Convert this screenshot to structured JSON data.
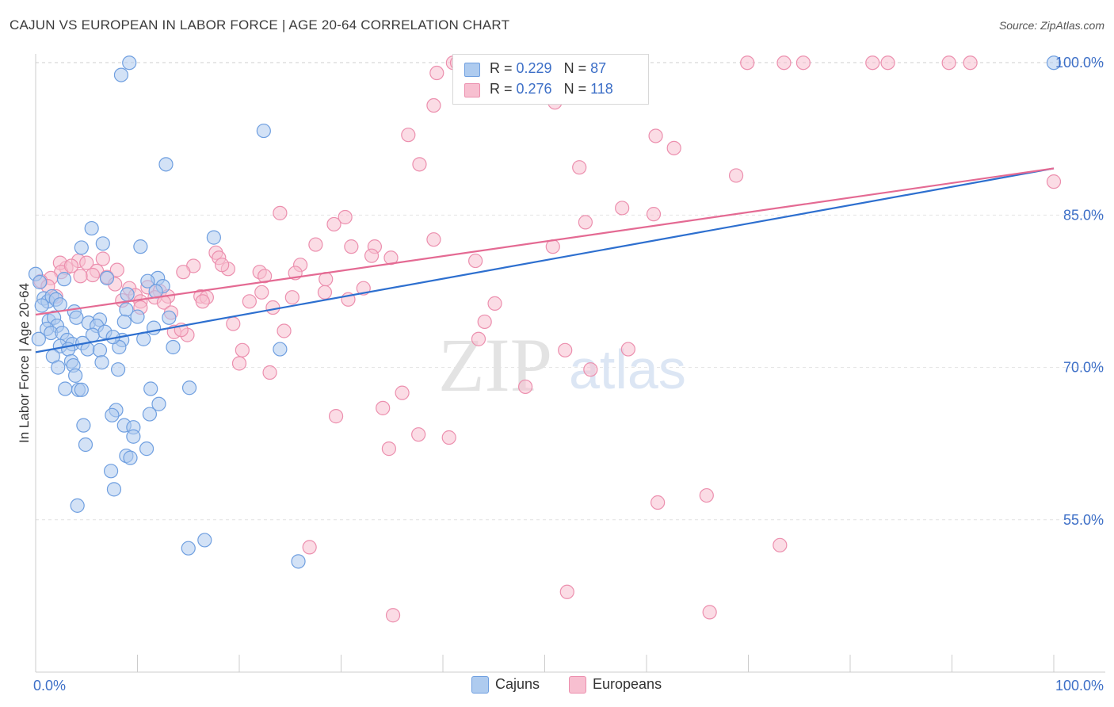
{
  "title": "CAJUN VS EUROPEAN IN LABOR FORCE | AGE 20-64 CORRELATION CHART",
  "source": "Source: ZipAtlas.com",
  "watermark": {
    "zip": "ZIP",
    "atlas": "atlas"
  },
  "legend": {
    "cajuns": {
      "r_label": "R = ",
      "r_value": "0.229",
      "n_label": "N = ",
      "n_value": "87"
    },
    "europeans": {
      "r_label": "R = ",
      "r_value": "0.276",
      "n_label": "N = ",
      "n_value": "118"
    }
  },
  "colors": {
    "cajun_fill": "#aecbef",
    "cajun_stroke": "#6f9fe0",
    "cajun_line": "#2d6fcf",
    "european_fill": "#f7bfd0",
    "european_stroke": "#ec8fae",
    "european_line": "#e46a93",
    "axis_label": "#3d6fc7",
    "grid": "#e2e2e2"
  },
  "chart_data": {
    "type": "scatter",
    "title": "CAJUN VS EUROPEAN IN LABOR FORCE | AGE 20-64 CORRELATION CHART",
    "xlabel": "",
    "ylabel": "In Labor Force | Age 20-64",
    "xlim": [
      0,
      100
    ],
    "ylim": [
      40,
      101.5
    ],
    "x_tick_labels": [
      "0.0%",
      "100.0%"
    ],
    "y_ticks": [
      55,
      70,
      85,
      100
    ],
    "y_tick_labels": [
      "55.0%",
      "70.0%",
      "85.0%",
      "100.0%"
    ],
    "grid": true,
    "legend_position": "bottom",
    "series": [
      {
        "name": "Cajuns",
        "r": 0.229,
        "n": 87,
        "trend": {
          "x": [
            0,
            100
          ],
          "y": [
            71.5,
            89.6
          ]
        },
        "points": [
          {
            "x": 9.2,
            "y": 100.0
          },
          {
            "x": 8.4,
            "y": 98.8
          },
          {
            "x": 100.0,
            "y": 100.0
          },
          {
            "x": 22.4,
            "y": 93.3
          },
          {
            "x": 12.8,
            "y": 90.0
          },
          {
            "x": 5.5,
            "y": 83.7
          },
          {
            "x": 17.5,
            "y": 82.8
          },
          {
            "x": 6.6,
            "y": 82.2
          },
          {
            "x": 10.3,
            "y": 81.9
          },
          {
            "x": 4.5,
            "y": 81.8
          },
          {
            "x": 0.0,
            "y": 79.2
          },
          {
            "x": 2.8,
            "y": 78.7
          },
          {
            "x": 7.0,
            "y": 78.8
          },
          {
            "x": 12.0,
            "y": 78.8
          },
          {
            "x": 11.0,
            "y": 78.5
          },
          {
            "x": 12.5,
            "y": 78.0
          },
          {
            "x": 0.4,
            "y": 78.4
          },
          {
            "x": 0.8,
            "y": 76.8
          },
          {
            "x": 1.2,
            "y": 76.5
          },
          {
            "x": 1.6,
            "y": 77.0
          },
          {
            "x": 2.0,
            "y": 76.7
          },
          {
            "x": 2.4,
            "y": 76.2
          },
          {
            "x": 0.6,
            "y": 76.1
          },
          {
            "x": 3.8,
            "y": 75.5
          },
          {
            "x": 8.9,
            "y": 75.7
          },
          {
            "x": 13.1,
            "y": 74.9
          },
          {
            "x": 1.3,
            "y": 74.6
          },
          {
            "x": 1.8,
            "y": 74.9
          },
          {
            "x": 4.0,
            "y": 74.9
          },
          {
            "x": 5.2,
            "y": 74.4
          },
          {
            "x": 6.3,
            "y": 74.7
          },
          {
            "x": 8.7,
            "y": 74.5
          },
          {
            "x": 2.1,
            "y": 74.1
          },
          {
            "x": 1.1,
            "y": 73.8
          },
          {
            "x": 6.0,
            "y": 74.1
          },
          {
            "x": 11.6,
            "y": 73.9
          },
          {
            "x": 1.5,
            "y": 73.4
          },
          {
            "x": 2.6,
            "y": 73.4
          },
          {
            "x": 5.6,
            "y": 73.2
          },
          {
            "x": 6.8,
            "y": 73.5
          },
          {
            "x": 0.3,
            "y": 72.8
          },
          {
            "x": 3.1,
            "y": 72.7
          },
          {
            "x": 8.5,
            "y": 72.7
          },
          {
            "x": 10.6,
            "y": 72.8
          },
          {
            "x": 2.4,
            "y": 72.1
          },
          {
            "x": 3.6,
            "y": 72.3
          },
          {
            "x": 4.6,
            "y": 72.4
          },
          {
            "x": 8.2,
            "y": 72.0
          },
          {
            "x": 3.2,
            "y": 71.8
          },
          {
            "x": 5.1,
            "y": 71.8
          },
          {
            "x": 6.3,
            "y": 71.7
          },
          {
            "x": 24.0,
            "y": 71.8
          },
          {
            "x": 1.7,
            "y": 71.1
          },
          {
            "x": 3.5,
            "y": 70.6
          },
          {
            "x": 3.7,
            "y": 70.2
          },
          {
            "x": 8.1,
            "y": 69.8
          },
          {
            "x": 3.9,
            "y": 69.2
          },
          {
            "x": 2.9,
            "y": 67.9
          },
          {
            "x": 4.2,
            "y": 67.8
          },
          {
            "x": 4.5,
            "y": 67.8
          },
          {
            "x": 11.3,
            "y": 67.9
          },
          {
            "x": 15.1,
            "y": 68.0
          },
          {
            "x": 12.1,
            "y": 66.4
          },
          {
            "x": 7.9,
            "y": 65.8
          },
          {
            "x": 7.5,
            "y": 65.3
          },
          {
            "x": 11.2,
            "y": 65.4
          },
          {
            "x": 4.7,
            "y": 64.3
          },
          {
            "x": 8.7,
            "y": 64.3
          },
          {
            "x": 9.6,
            "y": 64.1
          },
          {
            "x": 9.6,
            "y": 63.2
          },
          {
            "x": 4.9,
            "y": 62.4
          },
          {
            "x": 10.9,
            "y": 62.0
          },
          {
            "x": 8.9,
            "y": 61.3
          },
          {
            "x": 9.3,
            "y": 61.1
          },
          {
            "x": 7.4,
            "y": 59.8
          },
          {
            "x": 7.7,
            "y": 58.0
          },
          {
            "x": 4.1,
            "y": 56.4
          },
          {
            "x": 16.6,
            "y": 53.0
          },
          {
            "x": 15.0,
            "y": 52.2
          },
          {
            "x": 25.8,
            "y": 50.9
          },
          {
            "x": 9.0,
            "y": 77.2
          },
          {
            "x": 7.6,
            "y": 73.0
          },
          {
            "x": 10.0,
            "y": 75.0
          },
          {
            "x": 11.8,
            "y": 77.5
          },
          {
            "x": 6.5,
            "y": 70.5
          },
          {
            "x": 2.2,
            "y": 70.0
          },
          {
            "x": 13.5,
            "y": 72.0
          }
        ]
      },
      {
        "name": "Europeans",
        "r": 0.276,
        "n": 118,
        "trend": {
          "x": [
            0,
            100
          ],
          "y": [
            75.2,
            89.6
          ]
        },
        "points": [
          {
            "x": 41.0,
            "y": 100.0
          },
          {
            "x": 41.4,
            "y": 100.0
          },
          {
            "x": 52.6,
            "y": 100.0
          },
          {
            "x": 52.9,
            "y": 100.0
          },
          {
            "x": 69.9,
            "y": 100.0
          },
          {
            "x": 73.5,
            "y": 100.0
          },
          {
            "x": 75.4,
            "y": 100.0
          },
          {
            "x": 82.2,
            "y": 100.0
          },
          {
            "x": 83.7,
            "y": 100.0
          },
          {
            "x": 89.7,
            "y": 100.0
          },
          {
            "x": 91.8,
            "y": 100.0
          },
          {
            "x": 39.4,
            "y": 99.0
          },
          {
            "x": 51.5,
            "y": 99.1
          },
          {
            "x": 57.5,
            "y": 98.7
          },
          {
            "x": 47.6,
            "y": 98.3
          },
          {
            "x": 59.1,
            "y": 98.6
          },
          {
            "x": 58.4,
            "y": 97.0
          },
          {
            "x": 47.0,
            "y": 97.2
          },
          {
            "x": 39.1,
            "y": 95.8
          },
          {
            "x": 51.0,
            "y": 96.1
          },
          {
            "x": 36.6,
            "y": 92.9
          },
          {
            "x": 60.9,
            "y": 92.8
          },
          {
            "x": 62.7,
            "y": 91.6
          },
          {
            "x": 37.7,
            "y": 90.0
          },
          {
            "x": 53.4,
            "y": 89.7
          },
          {
            "x": 68.8,
            "y": 88.9
          },
          {
            "x": 100.0,
            "y": 88.3
          },
          {
            "x": 57.6,
            "y": 85.7
          },
          {
            "x": 24.0,
            "y": 85.2
          },
          {
            "x": 30.4,
            "y": 84.8
          },
          {
            "x": 60.7,
            "y": 85.1
          },
          {
            "x": 54.0,
            "y": 84.3
          },
          {
            "x": 29.3,
            "y": 84.1
          },
          {
            "x": 39.1,
            "y": 82.6
          },
          {
            "x": 27.5,
            "y": 82.1
          },
          {
            "x": 31.0,
            "y": 81.9
          },
          {
            "x": 33.3,
            "y": 81.9
          },
          {
            "x": 50.8,
            "y": 81.9
          },
          {
            "x": 33.0,
            "y": 81.0
          },
          {
            "x": 34.9,
            "y": 80.8
          },
          {
            "x": 17.7,
            "y": 81.3
          },
          {
            "x": 18.0,
            "y": 80.8
          },
          {
            "x": 43.2,
            "y": 80.5
          },
          {
            "x": 15.5,
            "y": 80.0
          },
          {
            "x": 26.0,
            "y": 80.1
          },
          {
            "x": 18.9,
            "y": 79.7
          },
          {
            "x": 22.0,
            "y": 79.4
          },
          {
            "x": 25.5,
            "y": 79.3
          },
          {
            "x": 22.5,
            "y": 79.0
          },
          {
            "x": 3.0,
            "y": 79.8
          },
          {
            "x": 4.2,
            "y": 80.5
          },
          {
            "x": 5.0,
            "y": 80.3
          },
          {
            "x": 2.4,
            "y": 80.3
          },
          {
            "x": 6.0,
            "y": 79.5
          },
          {
            "x": 7.0,
            "y": 78.9
          },
          {
            "x": 5.6,
            "y": 79.1
          },
          {
            "x": 28.5,
            "y": 78.7
          },
          {
            "x": 2.5,
            "y": 79.4
          },
          {
            "x": 1.5,
            "y": 78.8
          },
          {
            "x": 0.5,
            "y": 78.5
          },
          {
            "x": 1.2,
            "y": 78.0
          },
          {
            "x": 7.8,
            "y": 78.2
          },
          {
            "x": 9.2,
            "y": 77.8
          },
          {
            "x": 11.0,
            "y": 77.9
          },
          {
            "x": 12.2,
            "y": 77.5
          },
          {
            "x": 9.8,
            "y": 77.1
          },
          {
            "x": 13.0,
            "y": 77.0
          },
          {
            "x": 10.3,
            "y": 76.5
          },
          {
            "x": 11.7,
            "y": 76.9
          },
          {
            "x": 16.2,
            "y": 77.0
          },
          {
            "x": 16.8,
            "y": 76.9
          },
          {
            "x": 22.2,
            "y": 77.4
          },
          {
            "x": 25.2,
            "y": 76.9
          },
          {
            "x": 28.4,
            "y": 77.4
          },
          {
            "x": 32.2,
            "y": 77.8
          },
          {
            "x": 30.7,
            "y": 76.7
          },
          {
            "x": 21.0,
            "y": 76.5
          },
          {
            "x": 16.4,
            "y": 76.5
          },
          {
            "x": 12.6,
            "y": 76.4
          },
          {
            "x": 10.3,
            "y": 75.9
          },
          {
            "x": 23.3,
            "y": 75.9
          },
          {
            "x": 45.1,
            "y": 76.3
          },
          {
            "x": 8.5,
            "y": 76.6
          },
          {
            "x": 13.3,
            "y": 75.4
          },
          {
            "x": 44.1,
            "y": 74.5
          },
          {
            "x": 19.4,
            "y": 74.3
          },
          {
            "x": 13.6,
            "y": 73.5
          },
          {
            "x": 14.9,
            "y": 73.2
          },
          {
            "x": 14.3,
            "y": 73.7
          },
          {
            "x": 24.4,
            "y": 73.6
          },
          {
            "x": 43.5,
            "y": 72.8
          },
          {
            "x": 20.3,
            "y": 71.7
          },
          {
            "x": 52.0,
            "y": 71.7
          },
          {
            "x": 58.2,
            "y": 71.8
          },
          {
            "x": 20.0,
            "y": 70.4
          },
          {
            "x": 23.0,
            "y": 69.5
          },
          {
            "x": 54.5,
            "y": 69.8
          },
          {
            "x": 48.1,
            "y": 68.1
          },
          {
            "x": 36.0,
            "y": 67.5
          },
          {
            "x": 34.1,
            "y": 66.0
          },
          {
            "x": 29.5,
            "y": 65.2
          },
          {
            "x": 37.6,
            "y": 63.4
          },
          {
            "x": 40.6,
            "y": 63.1
          },
          {
            "x": 34.7,
            "y": 62.0
          },
          {
            "x": 65.9,
            "y": 57.4
          },
          {
            "x": 61.1,
            "y": 56.7
          },
          {
            "x": 26.9,
            "y": 52.3
          },
          {
            "x": 73.1,
            "y": 52.5
          },
          {
            "x": 52.2,
            "y": 47.9
          },
          {
            "x": 66.2,
            "y": 45.9
          },
          {
            "x": 35.1,
            "y": 45.6
          },
          {
            "x": 3.5,
            "y": 80.0
          },
          {
            "x": 4.4,
            "y": 79.0
          },
          {
            "x": 6.6,
            "y": 80.7
          },
          {
            "x": 2.0,
            "y": 77.0
          },
          {
            "x": 8.0,
            "y": 79.6
          },
          {
            "x": 14.5,
            "y": 79.4
          },
          {
            "x": 18.3,
            "y": 80.1
          }
        ]
      }
    ]
  },
  "bottom_legend": {
    "cajuns": "Cajuns",
    "europeans": "Europeans"
  }
}
